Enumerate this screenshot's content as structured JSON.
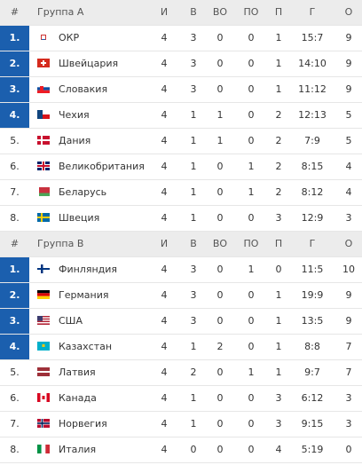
{
  "groups": [
    {
      "header": {
        "rank": "#",
        "name": "Группа А",
        "columns": [
          "И",
          "В",
          "ВО",
          "ПО",
          "П",
          "Г",
          "О"
        ]
      },
      "rows": [
        {
          "rank": "1.",
          "team": "ОКР",
          "values": [
            "4",
            "3",
            "0",
            "0",
            "1",
            "15:7",
            "9"
          ]
        },
        {
          "rank": "2.",
          "team": "Швейцария",
          "values": [
            "4",
            "3",
            "0",
            "0",
            "1",
            "14:10",
            "9"
          ]
        },
        {
          "rank": "3.",
          "team": "Словакия",
          "values": [
            "4",
            "3",
            "0",
            "0",
            "1",
            "11:12",
            "9"
          ]
        },
        {
          "rank": "4.",
          "team": "Чехия",
          "values": [
            "4",
            "1",
            "1",
            "0",
            "2",
            "12:13",
            "5"
          ]
        },
        {
          "rank": "5.",
          "team": "Дания",
          "values": [
            "4",
            "1",
            "1",
            "0",
            "2",
            "7:9",
            "5"
          ]
        },
        {
          "rank": "6.",
          "team": "Великобритания",
          "values": [
            "4",
            "1",
            "0",
            "1",
            "2",
            "8:15",
            "4"
          ]
        },
        {
          "rank": "7.",
          "team": "Беларусь",
          "values": [
            "4",
            "1",
            "0",
            "1",
            "2",
            "8:12",
            "4"
          ]
        },
        {
          "rank": "8.",
          "team": "Швеция",
          "values": [
            "4",
            "1",
            "0",
            "0",
            "3",
            "12:9",
            "3"
          ]
        }
      ]
    },
    {
      "header": {
        "rank": "#",
        "name": "Группа В",
        "columns": [
          "И",
          "В",
          "ВО",
          "ПО",
          "П",
          "Г",
          "О"
        ]
      },
      "rows": [
        {
          "rank": "1.",
          "team": "Финляндия",
          "values": [
            "4",
            "3",
            "0",
            "1",
            "0",
            "11:5",
            "10"
          ]
        },
        {
          "rank": "2.",
          "team": "Германия",
          "values": [
            "4",
            "3",
            "0",
            "0",
            "1",
            "19:9",
            "9"
          ]
        },
        {
          "rank": "3.",
          "team": "США",
          "values": [
            "4",
            "3",
            "0",
            "0",
            "1",
            "13:5",
            "9"
          ]
        },
        {
          "rank": "4.",
          "team": "Казахстан",
          "values": [
            "4",
            "1",
            "2",
            "0",
            "1",
            "8:8",
            "7"
          ]
        },
        {
          "rank": "5.",
          "team": "Латвия",
          "values": [
            "4",
            "2",
            "0",
            "1",
            "1",
            "9:7",
            "7"
          ]
        },
        {
          "rank": "6.",
          "team": "Канада",
          "values": [
            "4",
            "1",
            "0",
            "0",
            "3",
            "6:12",
            "3"
          ]
        },
        {
          "rank": "7.",
          "team": "Норвегия",
          "values": [
            "4",
            "1",
            "0",
            "0",
            "3",
            "9:15",
            "3"
          ]
        },
        {
          "rank": "8.",
          "team": "Италия",
          "values": [
            "4",
            "0",
            "0",
            "0",
            "4",
            "5:19",
            "0"
          ]
        }
      ]
    }
  ]
}
